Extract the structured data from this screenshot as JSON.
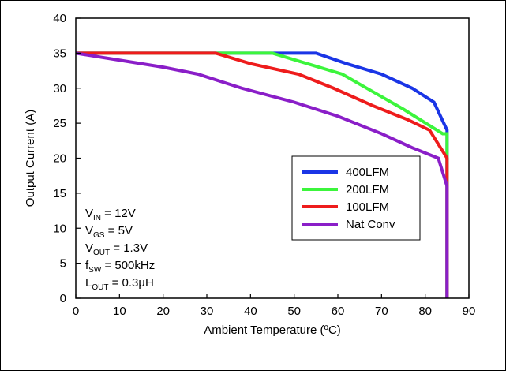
{
  "chart_data": {
    "type": "line",
    "xlabel": "Ambient Temperature (ºC)",
    "ylabel": "Output Current (A)",
    "xlim": [
      0,
      90
    ],
    "ylim": [
      0,
      40
    ],
    "xticks": [
      0,
      10,
      20,
      30,
      40,
      50,
      60,
      70,
      80,
      90
    ],
    "yticks": [
      0,
      5,
      10,
      15,
      20,
      25,
      30,
      35,
      40
    ],
    "grid": false,
    "legend_position": "right-center",
    "series": [
      {
        "name": "400LFM",
        "color": "#1a35e6",
        "x": [
          0,
          55,
          62,
          70,
          77,
          82,
          85
        ],
        "y": [
          35,
          35,
          33.5,
          32,
          30,
          28,
          24
        ]
      },
      {
        "name": "200LFM",
        "color": "#3cf53c",
        "x": [
          0,
          45,
          53,
          61,
          68,
          75,
          84,
          85
        ],
        "y": [
          35,
          35,
          33.5,
          32,
          29.5,
          27,
          23.5,
          23.5
        ]
      },
      {
        "name": "100LFM",
        "color": "#ee1c1c",
        "x": [
          0,
          32,
          40,
          51,
          59,
          68,
          76,
          81,
          85
        ],
        "y": [
          35,
          35,
          33.5,
          32,
          30,
          27.5,
          25.5,
          24,
          20
        ]
      },
      {
        "name": "Nat Conv",
        "color": "#8a1ec8",
        "x": [
          0,
          10,
          20,
          28,
          38,
          50,
          60,
          70,
          77,
          83,
          85
        ],
        "y": [
          35,
          34,
          33,
          32,
          30,
          28,
          26,
          23.5,
          21.5,
          20,
          16
        ]
      }
    ],
    "vertical_drop_x": 85,
    "conditions": [
      {
        "main": "V",
        "sub": "IN",
        "rest": " = 12V"
      },
      {
        "main": "V",
        "sub": "GS",
        "rest": " = 5V"
      },
      {
        "main": "V",
        "sub": "OUT",
        "rest": " = 1.3V"
      },
      {
        "main": "f",
        "sub": "SW",
        "rest": " = 500kHz"
      },
      {
        "main": "L",
        "sub": "OUT",
        "rest": " = 0.3µH"
      }
    ]
  }
}
